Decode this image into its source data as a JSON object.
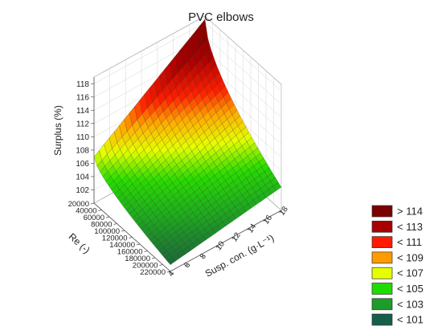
{
  "chart_data": {
    "type": "surface3d",
    "title": "PVC elbows",
    "xlabel": "Re (-)",
    "ylabel": "Susp. con. (g·L⁻¹)",
    "zlabel": "Surplus (%)",
    "x_ticks": [
      "20000",
      "40000",
      "60000",
      "80000",
      "100000",
      "120000",
      "140000",
      "160000",
      "180000",
      "200000",
      "220000"
    ],
    "y_ticks": [
      "4",
      "6",
      "8",
      "10",
      "12",
      "14",
      "16",
      "18"
    ],
    "z_ticks": [
      "102",
      "104",
      "106",
      "108",
      "110",
      "112",
      "114",
      "116",
      "118"
    ],
    "xlim": [
      20000,
      220000
    ],
    "ylim": [
      4,
      18
    ],
    "zlim": [
      100,
      119
    ],
    "corner_values": [
      {
        "Re": 20000,
        "conc": 4,
        "surplus": 107
      },
      {
        "Re": 20000,
        "conc": 18,
        "surplus": 118.5
      },
      {
        "Re": 220000,
        "conc": 4,
        "surplus": 101
      },
      {
        "Re": 220000,
        "conc": 18,
        "surplus": 103.5
      }
    ],
    "legend": {
      "placement": "right",
      "entries": [
        {
          "label": "> 114",
          "color": "#7b0000"
        },
        {
          "label": "< 113",
          "color": "#a80000"
        },
        {
          "label": "< 111",
          "color": "#ff1a00"
        },
        {
          "label": "< 109",
          "color": "#ff9a00"
        },
        {
          "label": "< 107",
          "color": "#e6ff00"
        },
        {
          "label": "< 105",
          "color": "#1fdc00"
        },
        {
          "label": "< 103",
          "color": "#1d9c2b"
        },
        {
          "label": "< 101",
          "color": "#155e4a"
        }
      ]
    },
    "grid": true
  }
}
